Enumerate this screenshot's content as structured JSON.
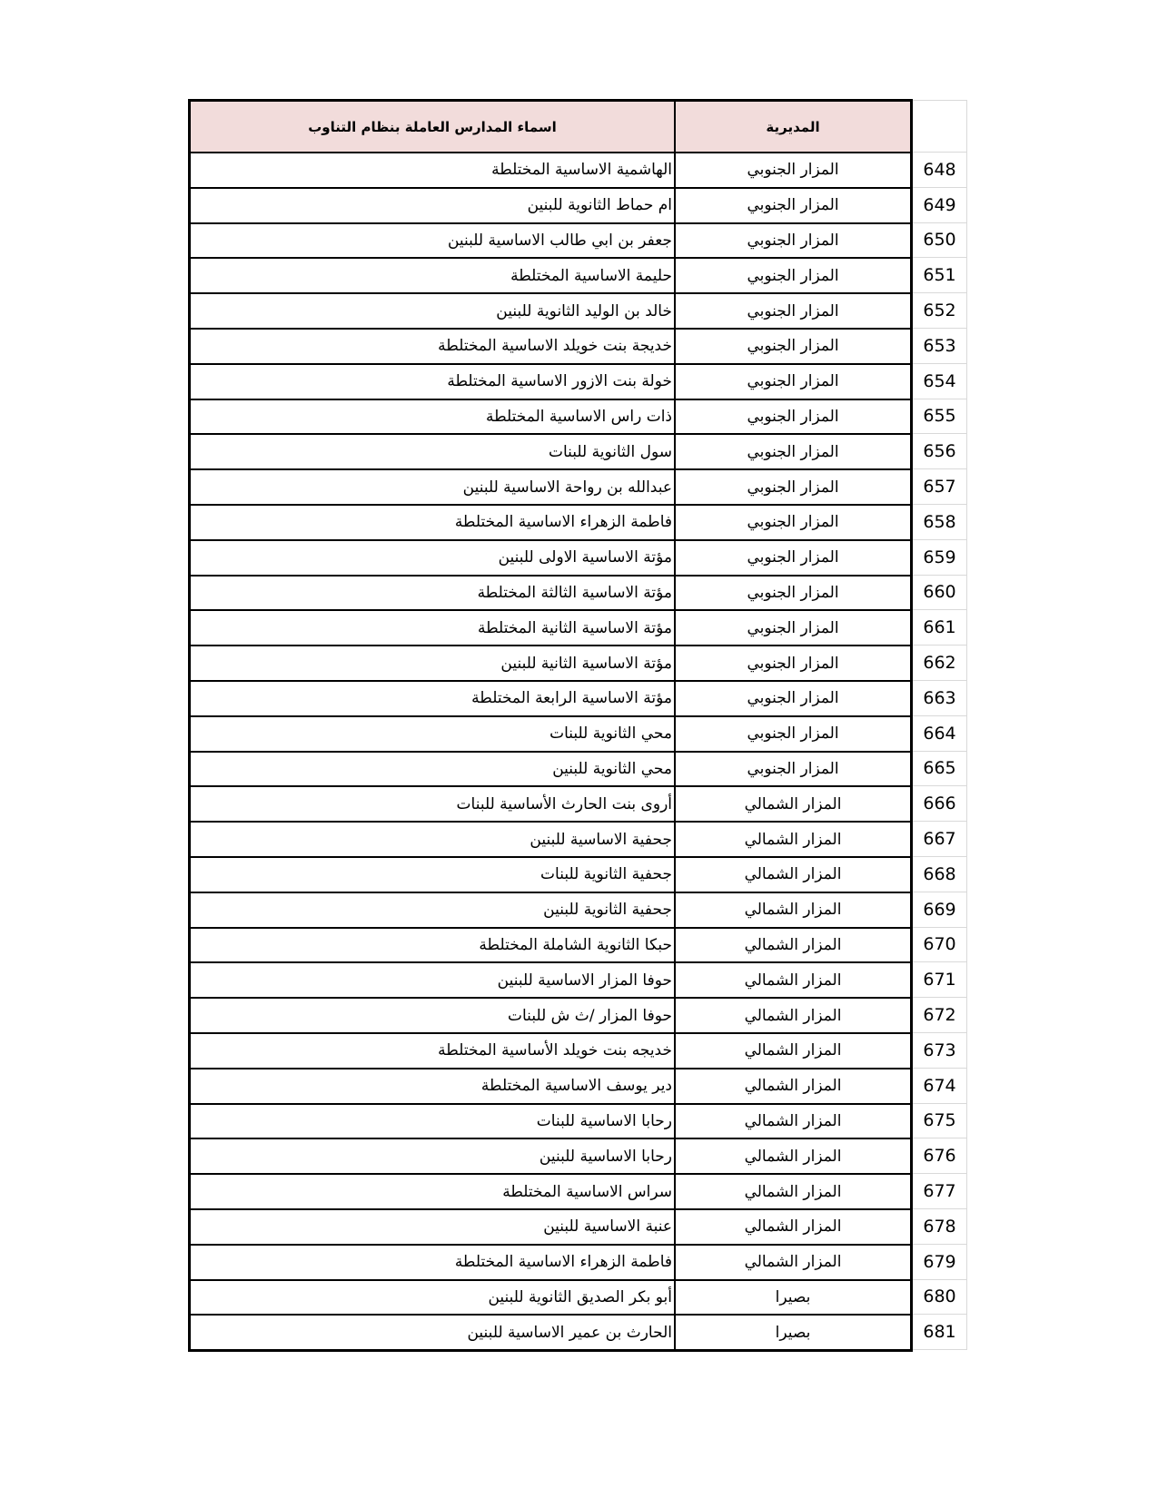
{
  "table": {
    "header": {
      "schools_label": "اسماء المدارس العاملة بنظام التناوب",
      "directorate_label": "المديرية"
    },
    "rows": [
      {
        "num": "648",
        "school": "الهاشمية الاساسية المختلطة",
        "directorate": "المزار الجنوبي"
      },
      {
        "num": "649",
        "school": "ام حماط الثانوية للبنين",
        "directorate": "المزار الجنوبي"
      },
      {
        "num": "650",
        "school": "جعفر بن ابي طالب الاساسية للبنين",
        "directorate": "المزار الجنوبي"
      },
      {
        "num": "651",
        "school": "حليمة الاساسية المختلطة",
        "directorate": "المزار الجنوبي"
      },
      {
        "num": "652",
        "school": "خالد بن الوليد الثانوية للبنين",
        "directorate": "المزار الجنوبي"
      },
      {
        "num": "653",
        "school": "خديجة بنت خويلد الاساسية المختلطة",
        "directorate": "المزار الجنوبي"
      },
      {
        "num": "654",
        "school": "خولة بنت الازور الاساسية المختلطة",
        "directorate": "المزار الجنوبي"
      },
      {
        "num": "655",
        "school": "ذات راس الاساسية المختلطة",
        "directorate": "المزار الجنوبي"
      },
      {
        "num": "656",
        "school": "سول الثانوية للبنات",
        "directorate": "المزار الجنوبي"
      },
      {
        "num": "657",
        "school": "عبدالله بن رواحة الاساسية للبنين",
        "directorate": "المزار الجنوبي"
      },
      {
        "num": "658",
        "school": "فاطمة الزهراء الاساسية المختلطة",
        "directorate": "المزار الجنوبي"
      },
      {
        "num": "659",
        "school": "مؤتة الاساسية الاولى للبنين",
        "directorate": "المزار الجنوبي"
      },
      {
        "num": "660",
        "school": "مؤتة الاساسية الثالثة المختلطة",
        "directorate": "المزار الجنوبي"
      },
      {
        "num": "661",
        "school": "مؤتة الاساسية الثانية المختلطة",
        "directorate": "المزار الجنوبي"
      },
      {
        "num": "662",
        "school": "مؤتة الاساسية الثانية للبنين",
        "directorate": "المزار الجنوبي"
      },
      {
        "num": "663",
        "school": "مؤتة الاساسية الرابعة المختلطة",
        "directorate": "المزار الجنوبي"
      },
      {
        "num": "664",
        "school": "محي الثانوية للبنات",
        "directorate": "المزار الجنوبي"
      },
      {
        "num": "665",
        "school": "محي الثانوية للبنين",
        "directorate": "المزار الجنوبي"
      },
      {
        "num": "666",
        "school": "أروى بنت الحارث الأساسية للبنات",
        "directorate": "المزار الشمالي"
      },
      {
        "num": "667",
        "school": "جحفية الاساسية للبنين",
        "directorate": "المزار الشمالي"
      },
      {
        "num": "668",
        "school": "جحفية الثانوية للبنات",
        "directorate": "المزار الشمالي"
      },
      {
        "num": "669",
        "school": "جحفية الثانوية للبنين",
        "directorate": "المزار الشمالي"
      },
      {
        "num": "670",
        "school": "حبكا الثانوية الشاملة المختلطة",
        "directorate": "المزار الشمالي"
      },
      {
        "num": "671",
        "school": "حوفا المزار الاساسية للبنين",
        "directorate": "المزار الشمالي"
      },
      {
        "num": "672",
        "school": "حوفا المزار /ث ش للبنات",
        "directorate": "المزار الشمالي"
      },
      {
        "num": "673",
        "school": "خديجه بنت خويلد الأساسية المختلطة",
        "directorate": "المزار الشمالي"
      },
      {
        "num": "674",
        "school": "دير يوسف الاساسية المختلطة",
        "directorate": "المزار الشمالي"
      },
      {
        "num": "675",
        "school": "رحابا الاساسية للبنات",
        "directorate": "المزار الشمالي"
      },
      {
        "num": "676",
        "school": "رحابا الاساسية للبنين",
        "directorate": "المزار الشمالي"
      },
      {
        "num": "677",
        "school": "سراس الاساسية المختلطة",
        "directorate": "المزار الشمالي"
      },
      {
        "num": "678",
        "school": "عنبة الاساسية للبنين",
        "directorate": "المزار الشمالي"
      },
      {
        "num": "679",
        "school": "فاطمة الزهراء الاساسية المختلطة",
        "directorate": "المزار الشمالي"
      },
      {
        "num": "680",
        "school": "أبو بكر الصديق الثانوية للبنين",
        "directorate": "بصيرا"
      },
      {
        "num": "681",
        "school": "الحارث بن عمير الاساسية للبنين",
        "directorate": "بصيرا"
      }
    ]
  },
  "colors": {
    "header_bg": "#f2dcdb",
    "table_border": "#000000",
    "grid_line": "#d9d9d9",
    "text": "#000000"
  }
}
